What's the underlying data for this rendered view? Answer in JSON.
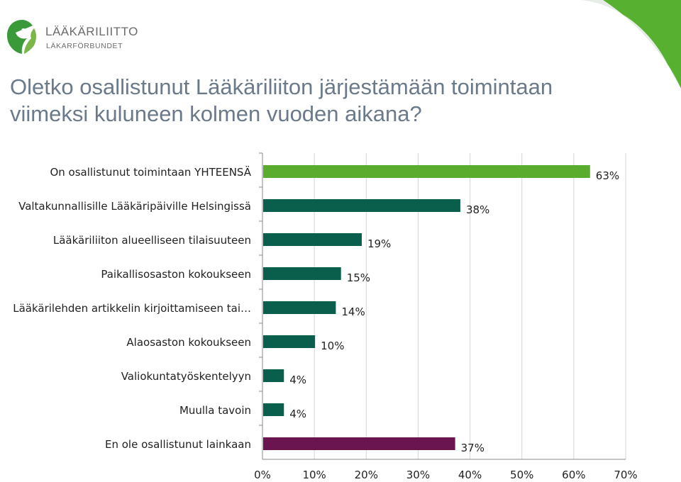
{
  "logo": {
    "name": "LÄÄKÄRILIITTO",
    "name_sv": "LÄKARFÖRBUNDET"
  },
  "slide": {
    "title_line1": "Oletko osallistunut Lääkäriliiton järjestämään toimintaan",
    "title_line2": "viimeksi kuluneen kolmen vuoden aikana?"
  },
  "colors": {
    "total": "#5aac2e",
    "activity": "#0a5e4c",
    "none": "#6a1450",
    "corner": "#58b030",
    "axis": "#888888",
    "grid": "#d6d6d6"
  },
  "chart_data": {
    "type": "bar",
    "orientation": "horizontal",
    "categories": [
      "On osallistunut toimintaan YHTEENSÄ",
      "Valtakunnallisille Lääkäripäiville Helsingissä",
      "Lääkäriliiton alueelliseen tilaisuuteen",
      "Paikallisosaston kokoukseen",
      "Lääkärilehden artikkelin kirjoittamiseen tai…",
      "Alaosaston kokoukseen",
      "Valiokuntatyöskentelyyn",
      "Muulla tavoin",
      "En ole osallistunut lainkaan"
    ],
    "values": [
      63,
      38,
      19,
      15,
      14,
      10,
      4,
      4,
      37
    ],
    "value_labels": [
      "63%",
      "38%",
      "19%",
      "15%",
      "14%",
      "10%",
      "4%",
      "4%",
      "37%"
    ],
    "bar_colors": [
      "#5aac2e",
      "#0a5e4c",
      "#0a5e4c",
      "#0a5e4c",
      "#0a5e4c",
      "#0a5e4c",
      "#0a5e4c",
      "#0a5e4c",
      "#6a1450"
    ],
    "xlim": [
      0,
      70
    ],
    "xticks": [
      0,
      10,
      20,
      30,
      40,
      50,
      60,
      70
    ],
    "xtick_labels": [
      "0%",
      "10%",
      "20%",
      "30%",
      "40%",
      "50%",
      "60%",
      "70%"
    ],
    "grid": true
  }
}
